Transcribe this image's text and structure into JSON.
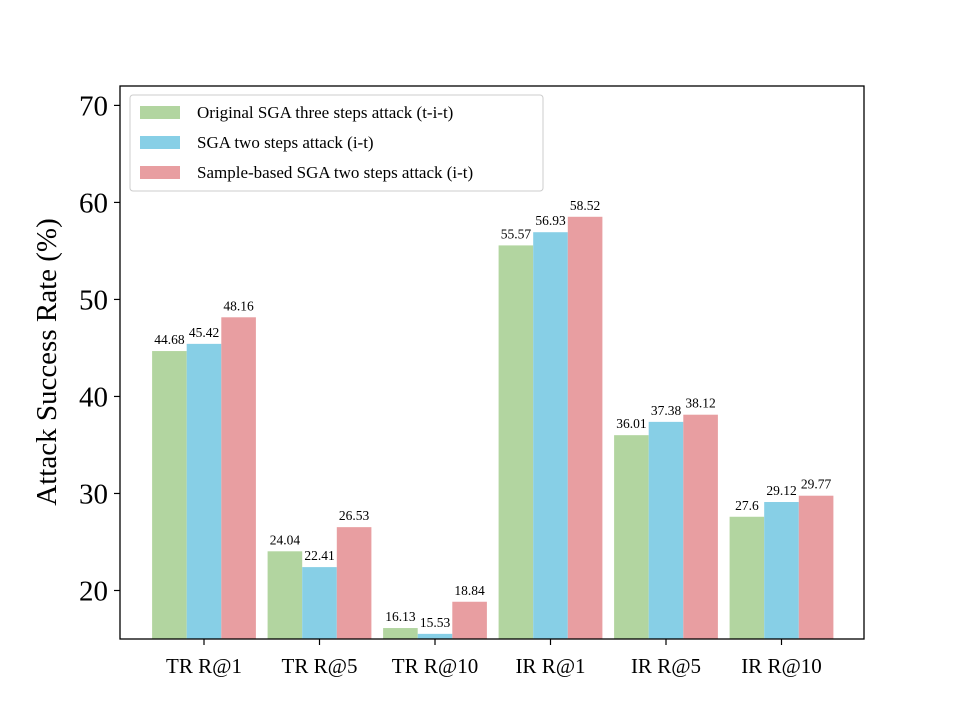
{
  "chart_data": {
    "type": "bar",
    "title": "",
    "xlabel": "",
    "ylabel": "Attack Success Rate (%)",
    "ylim": [
      15,
      72
    ],
    "yticks": [
      "20",
      "30",
      "40",
      "50",
      "60",
      "70"
    ],
    "categories": [
      "TR R@1",
      "TR R@5",
      "TR R@10",
      "IR R@1",
      "IR R@5",
      "IR R@10"
    ],
    "series": [
      {
        "name": "Original SGA three steps attack (t-i-t)",
        "color": "#b2d5a0",
        "values": [
          44.68,
          24.04,
          16.13,
          55.57,
          36.01,
          27.6
        ],
        "labels": [
          "44.68",
          "24.04",
          "16.13",
          "55.57",
          "36.01",
          "27.6"
        ]
      },
      {
        "name": "SGA two steps attack (i-t)",
        "color": "#87cfe6",
        "values": [
          45.42,
          22.41,
          15.53,
          56.93,
          37.38,
          29.12
        ],
        "labels": [
          "45.42",
          "22.41",
          "15.53",
          "56.93",
          "37.38",
          "29.12"
        ]
      },
      {
        "name": "Sample-based SGA two steps attack (i-t)",
        "color": "#e89ea1",
        "values": [
          48.16,
          26.53,
          18.84,
          58.52,
          38.12,
          29.77
        ],
        "labels": [
          "48.16",
          "26.53",
          "18.84",
          "58.52",
          "38.12",
          "29.77"
        ]
      }
    ],
    "legend_position": "top-left",
    "grid": false
  }
}
